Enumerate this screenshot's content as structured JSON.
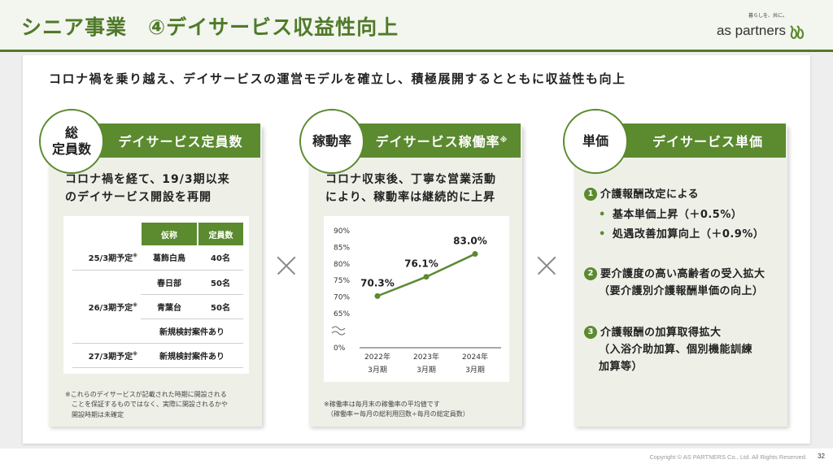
{
  "header": {
    "title": "シニア事業　④デイサービス収益性向上",
    "logo_tagline": "暮らしを、共に。",
    "logo_name": "as partners"
  },
  "subtitle": "コロナ禍を乗り越え、デイサービスの運営モデルを確立し、積極展開するとともに収益性も向上",
  "card1": {
    "circle_label": "総\n定員数",
    "header": "デイサービス定員数",
    "text": [
      "コロナ禍を経て、19/3期以来",
      "のデイサービス開設を再開"
    ],
    "table": {
      "headers": [
        "仮称",
        "定員数"
      ],
      "groups": [
        {
          "period": "25/3期予定",
          "mark": "※",
          "rows": [
            [
              "葛飾白鳥",
              "40名"
            ]
          ]
        },
        {
          "period": "26/3期予定",
          "mark": "※",
          "rows": [
            [
              "春日部",
              "50名"
            ],
            [
              "青葉台",
              "50名"
            ],
            [
              "新規検討案件あり",
              ""
            ]
          ]
        },
        {
          "period": "27/3期予定",
          "mark": "※",
          "rows": [
            [
              "新規検討案件あり",
              ""
            ]
          ]
        }
      ]
    },
    "note": [
      "※これらのデイサービスが記載された時期に開設される",
      "　ことを保証するものではなく、実際に開設されるかや",
      "　開設時期は未確定"
    ]
  },
  "card2": {
    "circle_label": "稼動率",
    "header": "デイサービス稼働率",
    "header_mark": "※",
    "text": [
      "コロナ収束後、丁寧な営業活動",
      "により、稼動率は継続的に上昇"
    ],
    "note": [
      "※稼働率は毎月末の稼働率の平均値です",
      "　（稼働率＝毎月の総利用回数÷毎月の総定員数）"
    ]
  },
  "card3": {
    "circle_label": "単価",
    "header": "デイサービス単価",
    "items": [
      {
        "num": "1",
        "text": "介護報酬改定による"
      },
      {
        "bullet": "•",
        "text": "基本単価上昇（＋0.5%）"
      },
      {
        "bullet": "•",
        "text": "処遇改善加算向上（＋0.9%）"
      },
      {
        "num": "2",
        "text": "要介護度の高い高齢者の受入拡大"
      },
      {
        "text": "（要介護別介護報酬単価の向上）"
      },
      {
        "num": "3",
        "text": "介護報酬の加算取得拡大"
      },
      {
        "text": "（入浴介助加算、個別機能訓練"
      },
      {
        "text": "加算等）"
      }
    ]
  },
  "chart_data": {
    "type": "line",
    "categories": [
      "2022年\n3月期",
      "2023年\n3月期",
      "2024年\n3月期"
    ],
    "series": [
      {
        "values": [
          70.3,
          76.1,
          83.0
        ]
      }
    ],
    "data_labels": [
      "70.3%",
      "76.1%",
      "83.0%"
    ],
    "yticks": [
      "90%",
      "85%",
      "80%",
      "75%",
      "70%",
      "65%",
      "0%"
    ],
    "ytick_values": [
      90,
      85,
      80,
      75,
      70,
      65
    ],
    "ylim": [
      65,
      90
    ],
    "axis_break": true,
    "line_color": "#5b8a2f"
  },
  "footer": {
    "copyright": "Copyright © AS PARTNERS Co., Ltd. All Rights Reserved.",
    "page": "32"
  }
}
